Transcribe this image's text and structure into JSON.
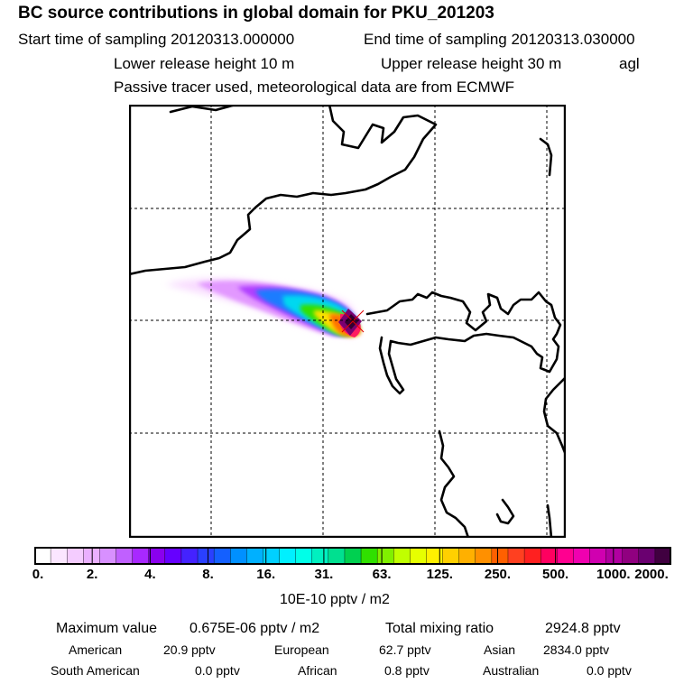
{
  "header": {
    "title": "BC  source contributions in global domain for PKU_201203",
    "start_label": "Start time of sampling 20120313.000000",
    "end_label": "End time of sampling 20120313.030000",
    "lower_label": "Lower release height   10 m",
    "upper_label": "Upper release height   30 m",
    "agl": "agl",
    "tracer_label": "Passive tracer used, meteorological data are from ECMWF"
  },
  "colorbar": {
    "ticks": [
      "0.",
      "2.",
      "4.",
      "8.",
      "16.",
      "31.",
      "63.",
      "125.",
      "250.",
      "500.",
      "1000.",
      "2000."
    ],
    "unit": "10E-10 pptv / m2",
    "colors": [
      "#ffffff",
      "#fbe6ff",
      "#f4ccff",
      "#eab0ff",
      "#d890ff",
      "#c060ff",
      "#a828ff",
      "#8a00ee",
      "#6600ff",
      "#4422ff",
      "#2a40ff",
      "#1460ff",
      "#0090ff",
      "#00b0ff",
      "#00d0ff",
      "#00f0ff",
      "#00ffe8",
      "#00f0c0",
      "#00e090",
      "#00d050",
      "#30e000",
      "#80f000",
      "#c0ff00",
      "#e6ff00",
      "#fff000",
      "#ffd000",
      "#ffb000",
      "#ff9000",
      "#ff6000",
      "#ff4020",
      "#ff2020",
      "#ff0060",
      "#ff0090",
      "#f000b0",
      "#d000b0",
      "#b000a0",
      "#900080",
      "#6a0070",
      "#400040"
    ]
  },
  "stats": {
    "max_label": "Maximum value",
    "max_value": "0.675E-06 pptv / m2",
    "total_label": "Total mixing ratio",
    "total_value": "2924.8 pptv",
    "american_label": "American",
    "american_value": "20.9 pptv",
    "european_label": "European",
    "european_value": "62.7 pptv",
    "asian_label": "Asian",
    "asian_value": "2834.0 pptv",
    "south_american_label": "South American",
    "south_american_value": "0.0 pptv",
    "african_label": "African",
    "african_value": "0.8 pptv",
    "australian_label": "Australian",
    "australian_value": "0.0 pptv"
  },
  "map": {
    "coast_color": "#000000",
    "grid_color": "#000000"
  }
}
